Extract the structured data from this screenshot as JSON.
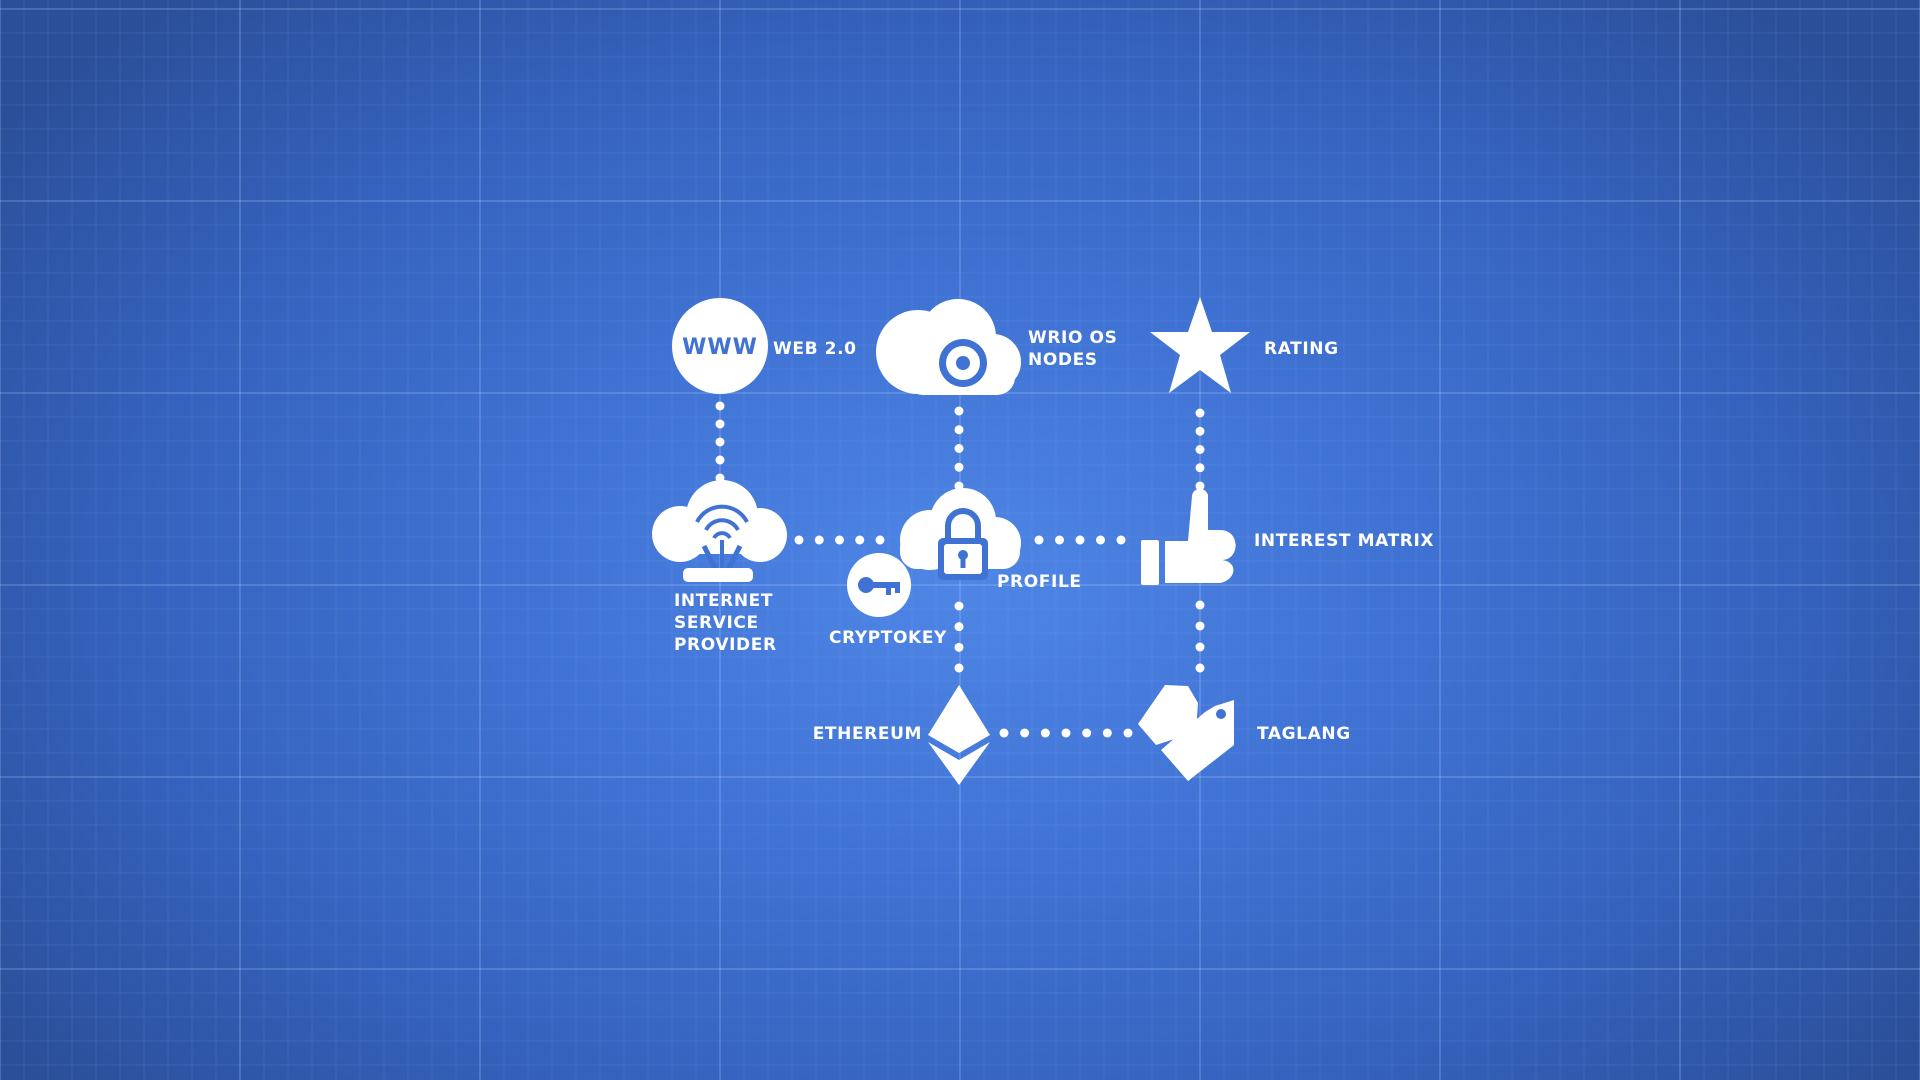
{
  "theme": {
    "icon_color": "#ffffff",
    "accent_color": "#3f72d3"
  },
  "nodes": {
    "web20": {
      "icon": "www-globe-icon",
      "icon_text": "WWW",
      "label": "WEB 2.0"
    },
    "wrio": {
      "icon": "cloud-camera-icon",
      "label_lines": [
        "WRIO OS",
        "NODES"
      ]
    },
    "rating": {
      "icon": "star-icon",
      "label": "RATING"
    },
    "isp": {
      "icon": "cloud-router-icon",
      "label_lines": [
        "INTERNET",
        "SERVICE",
        "PROVIDER"
      ]
    },
    "profile": {
      "icon": "cloud-lock-icon",
      "label": "PROFILE"
    },
    "cryptokey": {
      "icon": "key-icon",
      "label": "CRYPTOKEY"
    },
    "interest_matrix": {
      "icon": "thumbs-up-icon",
      "label": "INTEREST MATRIX"
    },
    "ethereum": {
      "icon": "ethereum-icon",
      "label": "ETHEREUM"
    },
    "taglang": {
      "icon": "tag-icon",
      "label": "TAGLANG"
    }
  },
  "connections": [
    [
      "web20",
      "isp"
    ],
    [
      "wrio",
      "profile"
    ],
    [
      "rating",
      "interest_matrix"
    ],
    [
      "isp",
      "profile"
    ],
    [
      "profile",
      "interest_matrix"
    ],
    [
      "profile",
      "ethereum"
    ],
    [
      "interest_matrix",
      "taglang"
    ],
    [
      "ethereum",
      "taglang"
    ]
  ]
}
